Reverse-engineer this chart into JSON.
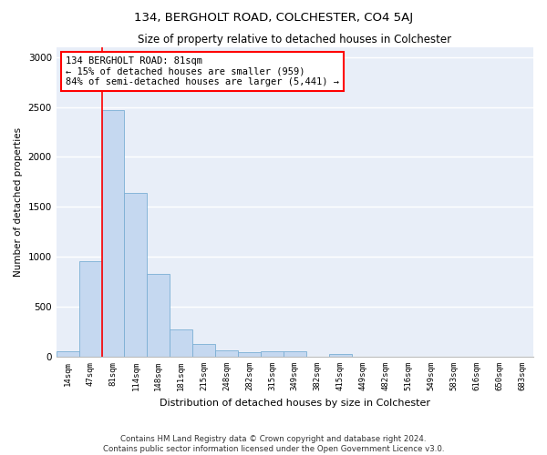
{
  "title": "134, BERGHOLT ROAD, COLCHESTER, CO4 5AJ",
  "subtitle": "Size of property relative to detached houses in Colchester",
  "xlabel": "Distribution of detached houses by size in Colchester",
  "ylabel": "Number of detached properties",
  "bar_color": "#c5d8f0",
  "bar_edge_color": "#7bafd4",
  "background_color": "#e8eef8",
  "grid_color": "#ffffff",
  "categories": [
    "14sqm",
    "47sqm",
    "81sqm",
    "114sqm",
    "148sqm",
    "181sqm",
    "215sqm",
    "248sqm",
    "282sqm",
    "315sqm",
    "349sqm",
    "382sqm",
    "415sqm",
    "449sqm",
    "482sqm",
    "516sqm",
    "549sqm",
    "583sqm",
    "616sqm",
    "650sqm",
    "683sqm"
  ],
  "values": [
    55,
    960,
    2470,
    1640,
    830,
    270,
    125,
    60,
    50,
    55,
    55,
    5,
    30,
    5,
    5,
    5,
    5,
    5,
    5,
    5,
    5
  ],
  "annotation_text": "134 BERGHOLT ROAD: 81sqm\n← 15% of detached houses are smaller (959)\n84% of semi-detached houses are larger (5,441) →",
  "annotation_box_color": "white",
  "annotation_box_edge": "red",
  "property_line_color": "red",
  "ylim": [
    0,
    3100
  ],
  "yticks": [
    0,
    500,
    1000,
    1500,
    2000,
    2500,
    3000
  ],
  "footnote1": "Contains HM Land Registry data © Crown copyright and database right 2024.",
  "footnote2": "Contains public sector information licensed under the Open Government Licence v3.0."
}
